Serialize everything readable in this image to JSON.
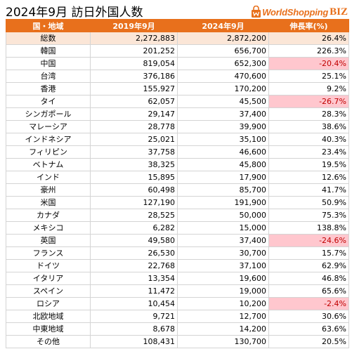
{
  "title": "2024年9月 訪日外国人数",
  "brand": {
    "name": "WorldShopping",
    "suffix": "BIZ",
    "accent": "#e8701c"
  },
  "colors": {
    "header_bg": "#e8701c",
    "total_row_bg": "#fbe6d7",
    "negative_bg": "#ffc7ce",
    "negative_text": "#c00000"
  },
  "table": {
    "headers": [
      "国・地域",
      "2019年9月",
      "2024年9月",
      "伸長率(%)"
    ],
    "rows": [
      {
        "name": "総数",
        "y2019": "2,272,883",
        "y2024": "2,872,200",
        "growth": "26.4%",
        "negative": false,
        "total": true
      },
      {
        "name": "韓国",
        "y2019": "201,252",
        "y2024": "656,700",
        "growth": "226.3%",
        "negative": false
      },
      {
        "name": "中国",
        "y2019": "819,054",
        "y2024": "652,300",
        "growth": "-20.4%",
        "negative": true
      },
      {
        "name": "台湾",
        "y2019": "376,186",
        "y2024": "470,600",
        "growth": "25.1%",
        "negative": false
      },
      {
        "name": "香港",
        "y2019": "155,927",
        "y2024": "170,200",
        "growth": "9.2%",
        "negative": false
      },
      {
        "name": "タイ",
        "y2019": "62,057",
        "y2024": "45,500",
        "growth": "-26.7%",
        "negative": true
      },
      {
        "name": "シンガポール",
        "y2019": "29,147",
        "y2024": "37,400",
        "growth": "28.3%",
        "negative": false
      },
      {
        "name": "マレーシア",
        "y2019": "28,778",
        "y2024": "39,900",
        "growth": "38.6%",
        "negative": false
      },
      {
        "name": "インドネシア",
        "y2019": "25,021",
        "y2024": "35,100",
        "growth": "40.3%",
        "negative": false
      },
      {
        "name": "フィリピン",
        "y2019": "37,758",
        "y2024": "46,600",
        "growth": "23.4%",
        "negative": false
      },
      {
        "name": "ベトナム",
        "y2019": "38,325",
        "y2024": "45,800",
        "growth": "19.5%",
        "negative": false
      },
      {
        "name": "インド",
        "y2019": "15,895",
        "y2024": "17,900",
        "growth": "12.6%",
        "negative": false
      },
      {
        "name": "豪州",
        "y2019": "60,498",
        "y2024": "85,700",
        "growth": "41.7%",
        "negative": false
      },
      {
        "name": "米国",
        "y2019": "127,190",
        "y2024": "191,900",
        "growth": "50.9%",
        "negative": false
      },
      {
        "name": "カナダ",
        "y2019": "28,525",
        "y2024": "50,000",
        "growth": "75.3%",
        "negative": false
      },
      {
        "name": "メキシコ",
        "y2019": "6,282",
        "y2024": "15,000",
        "growth": "138.8%",
        "negative": false
      },
      {
        "name": "英国",
        "y2019": "49,580",
        "y2024": "37,400",
        "growth": "-24.6%",
        "negative": true
      },
      {
        "name": "フランス",
        "y2019": "26,530",
        "y2024": "30,700",
        "growth": "15.7%",
        "negative": false
      },
      {
        "name": "ドイツ",
        "y2019": "22,768",
        "y2024": "37,100",
        "growth": "62.9%",
        "negative": false
      },
      {
        "name": "イタリア",
        "y2019": "13,354",
        "y2024": "19,600",
        "growth": "46.8%",
        "negative": false
      },
      {
        "name": "スペイン",
        "y2019": "11,472",
        "y2024": "19,000",
        "growth": "65.6%",
        "negative": false
      },
      {
        "name": "ロシア",
        "y2019": "10,454",
        "y2024": "10,200",
        "growth": "-2.4%",
        "negative": true
      },
      {
        "name": "北欧地域",
        "y2019": "9,721",
        "y2024": "12,700",
        "growth": "30.6%",
        "negative": false
      },
      {
        "name": "中東地域",
        "y2019": "8,678",
        "y2024": "14,200",
        "growth": "63.6%",
        "negative": false
      },
      {
        "name": "その他",
        "y2019": "108,431",
        "y2024": "130,700",
        "growth": "20.5%",
        "negative": false
      }
    ]
  }
}
